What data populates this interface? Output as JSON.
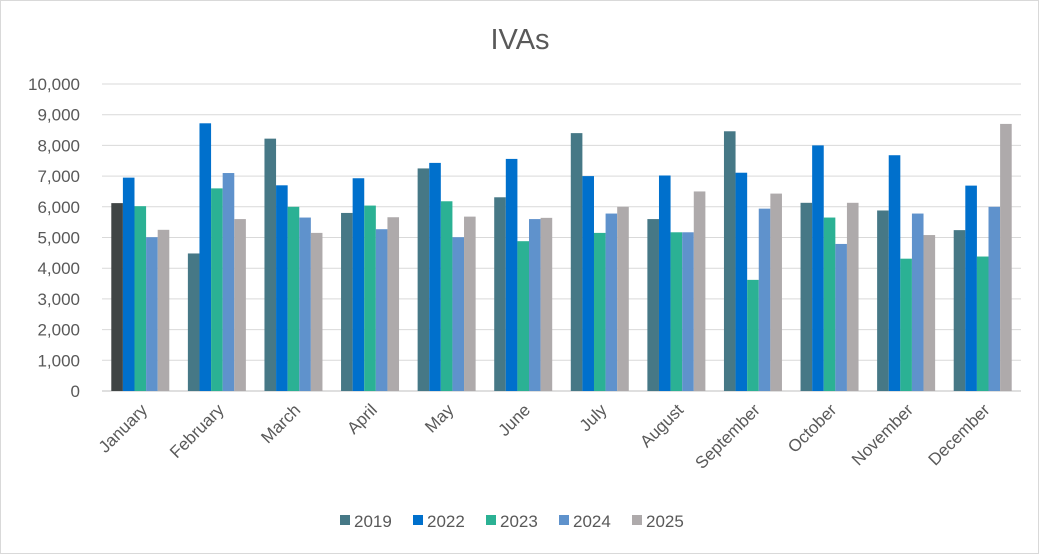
{
  "chart_data": {
    "type": "bar",
    "title": "IVAs",
    "xlabel": "",
    "ylabel": "",
    "ylim": [
      0,
      10000
    ],
    "yticks": [
      "0",
      "1,000",
      "2,000",
      "3,000",
      "4,000",
      "5,000",
      "6,000",
      "7,000",
      "8,000",
      "9,000",
      "10,000"
    ],
    "grid": true,
    "legend_position": "bottom",
    "categories": [
      "January",
      "February",
      "March",
      "April",
      "May",
      "June",
      "July",
      "August",
      "September",
      "October",
      "November",
      "December"
    ],
    "series": [
      {
        "name": "2019",
        "color": "#467886",
        "values": [
          6120,
          4480,
          8220,
          5800,
          7250,
          6310,
          8400,
          5600,
          8460,
          6130,
          5880,
          5240
        ]
      },
      {
        "name": "2022",
        "color": "#0070cc",
        "values": [
          6950,
          8720,
          6700,
          6930,
          7430,
          7560,
          7000,
          7020,
          7110,
          8000,
          7680,
          6690
        ]
      },
      {
        "name": "2023",
        "color": "#2bb194",
        "values": [
          6020,
          6600,
          6000,
          6040,
          6180,
          4880,
          5150,
          5170,
          3620,
          5650,
          4310,
          4380
        ]
      },
      {
        "name": "2024",
        "color": "#5f92cc",
        "values": [
          5010,
          7100,
          5650,
          5270,
          5010,
          5600,
          5780,
          5170,
          5940,
          4790,
          5780,
          6000
        ]
      },
      {
        "name": "2025",
        "color": "#aeaaab",
        "values": [
          5250,
          5600,
          5150,
          5660,
          5680,
          5640,
          6000,
          6500,
          6430,
          6130,
          5080,
          8700
        ]
      }
    ],
    "highlighted_point": {
      "series": "2019",
      "category": "January",
      "color": "#404545"
    }
  }
}
